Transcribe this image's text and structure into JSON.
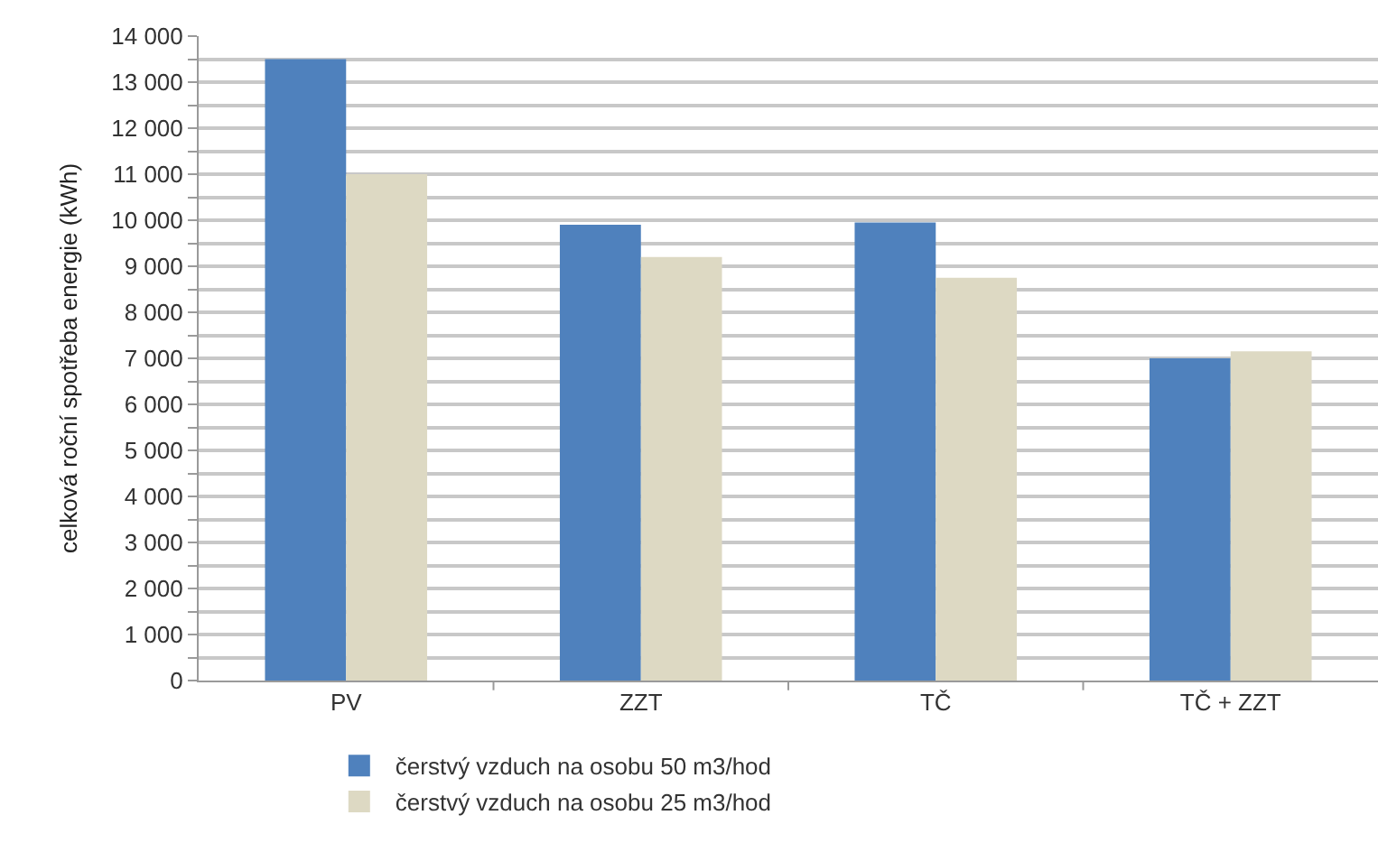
{
  "chart_data": {
    "type": "bar",
    "ylabel": "celková roční spotřeba energie (kWh)",
    "categories": [
      "PV",
      "ZZT",
      "TČ",
      "TČ + ZZT"
    ],
    "series": [
      {
        "name": "čerstvý vzduch na osobu 50 m3/hod",
        "color": "#4f81bd",
        "values": [
          13500,
          9900,
          9950,
          7000
        ]
      },
      {
        "name": "čerstvý vzduch na osobu 25 m3/hod",
        "color": "#ddd9c3",
        "values": [
          11000,
          9200,
          8750,
          7150
        ]
      }
    ],
    "ylim": [
      0,
      14000
    ],
    "yticks": [
      {
        "value": 0,
        "label": "0"
      },
      {
        "value": 500,
        "label": null
      },
      {
        "value": 1000,
        "label": "1 000"
      },
      {
        "value": 1500,
        "label": null
      },
      {
        "value": 2000,
        "label": "2 000"
      },
      {
        "value": 2500,
        "label": null
      },
      {
        "value": 3000,
        "label": "3 000"
      },
      {
        "value": 3500,
        "label": null
      },
      {
        "value": 4000,
        "label": "4 000"
      },
      {
        "value": 4500,
        "label": null
      },
      {
        "value": 5000,
        "label": "5 000"
      },
      {
        "value": 5500,
        "label": null
      },
      {
        "value": 6000,
        "label": "6 000"
      },
      {
        "value": 6500,
        "label": null
      },
      {
        "value": 7000,
        "label": "7 000"
      },
      {
        "value": 7500,
        "label": null
      },
      {
        "value": 8000,
        "label": "8 000"
      },
      {
        "value": 8500,
        "label": null
      },
      {
        "value": 9000,
        "label": "9 000"
      },
      {
        "value": 9500,
        "label": null
      },
      {
        "value": 10000,
        "label": "10 000"
      },
      {
        "value": 10500,
        "label": null
      },
      {
        "value": 11000,
        "label": "11 000"
      },
      {
        "value": 11500,
        "label": null
      },
      {
        "value": 12000,
        "label": "12 000"
      },
      {
        "value": 12500,
        "label": null
      },
      {
        "value": 13000,
        "label": "13 000"
      },
      {
        "value": 13500,
        "label": null
      },
      {
        "value": 14000,
        "label": "14 000"
      }
    ],
    "grid": "y",
    "legend": "bottom"
  }
}
